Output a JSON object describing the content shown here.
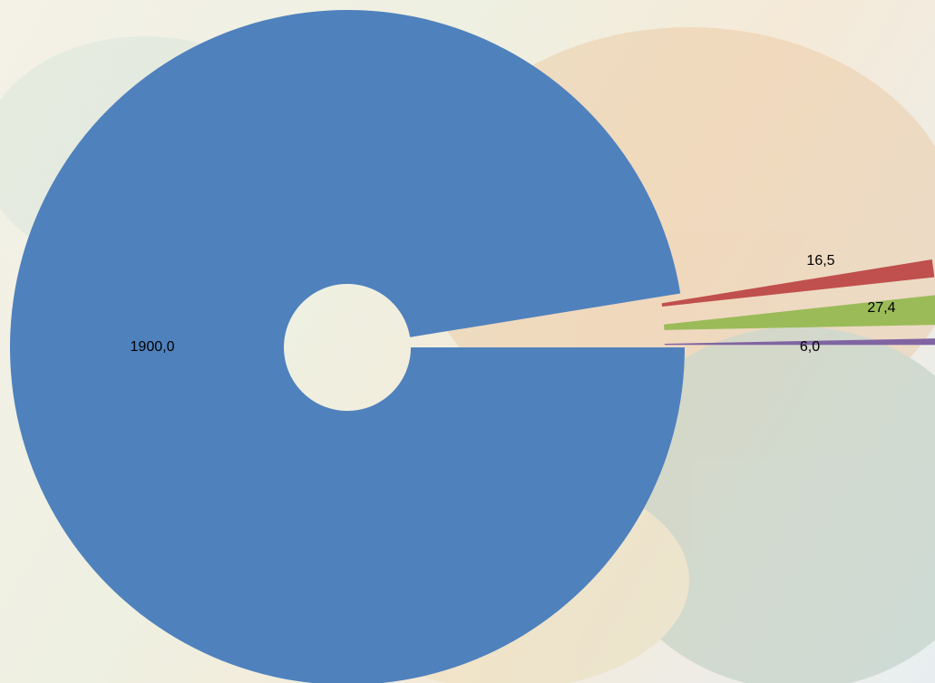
{
  "chart_data": {
    "type": "doughnut",
    "series": [
      {
        "values": [
          1900.0,
          16.5,
          27.4,
          6.0
        ],
        "value_labels": [
          "1900,0",
          "16,5",
          "27,4",
          "6,0"
        ],
        "colors": [
          "#4f81bd",
          "#c0504d",
          "#9bbb59",
          "#8064a2"
        ]
      }
    ]
  }
}
